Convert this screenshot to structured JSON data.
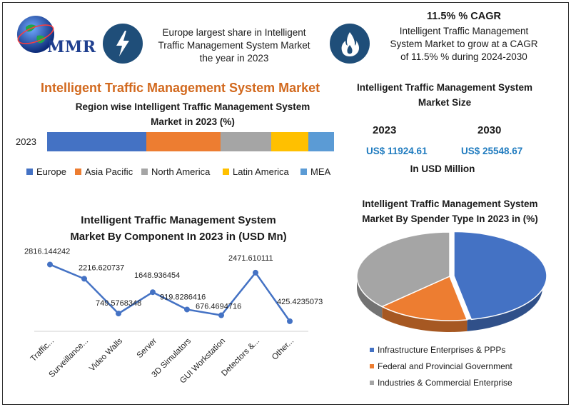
{
  "header": {
    "logo_text": "MMR",
    "left_text_lines": [
      "Europe largest share in Intelligent",
      "Traffic Management System Market",
      "the year in 2023"
    ],
    "right_title": "11.5% % CAGR",
    "right_text_lines": [
      "Intelligent Traffic Management",
      "System Market to grow at a CAGR",
      "of 11.5% % during 2024-2030"
    ]
  },
  "main_title": "Intelligent Traffic Management  System Market",
  "market_size": {
    "title_lines": [
      "Intelligent Traffic Management System",
      "Market Size"
    ],
    "year1": "2023",
    "value1": "US$ 11924.61",
    "year2": "2030",
    "value2": "US$ 25548.67",
    "unit": "In USD Million"
  },
  "chart_data": [
    {
      "type": "bar",
      "orientation": "horizontal",
      "stacked": true,
      "title": "Region wise Intelligent  Traffic Management System Market in 2023 (%)",
      "title_lines": [
        "Region wise Intelligent  Traffic Management System",
        "Market in 2023 (%)"
      ],
      "categories": [
        "2023"
      ],
      "series": [
        {
          "name": "Europe",
          "values": [
            35
          ],
          "color": "#4472c4"
        },
        {
          "name": "Asia Pacific",
          "values": [
            26
          ],
          "color": "#ed7d31"
        },
        {
          "name": "North America",
          "values": [
            18
          ],
          "color": "#a5a5a5"
        },
        {
          "name": "Latin America",
          "values": [
            13
          ],
          "color": "#ffc000"
        },
        {
          "name": "MEA",
          "values": [
            9
          ],
          "color": "#5b9bd5"
        }
      ],
      "legend": "bottom"
    },
    {
      "type": "line",
      "title": "Intelligent Traffic Management System Market By Component In 2023 in (USD Mn)",
      "title_lines": [
        "Intelligent Traffic Management System",
        "Market By Component In 2023 in (USD Mn)"
      ],
      "categories": [
        "Traffic...",
        "Surveillance...",
        "Video Walls",
        "Server",
        "3D Simulators",
        "GUI Workstation",
        "Detectors &...",
        "Other..."
      ],
      "values": [
        2816.144242,
        2216.620737,
        749.5768348,
        1648.936454,
        919.8286416,
        676.4694716,
        2471.610111,
        425.4235073
      ],
      "data_labels": [
        "2816.144242",
        "2216.620737",
        "749.5768348",
        "1648.936454",
        "919.8286416",
        "676.4694716",
        "2471.610111",
        "425.4235073"
      ],
      "color": "#4472c4",
      "ylim": [
        0,
        3000
      ]
    },
    {
      "type": "pie",
      "title": "Intelligent Traffic Management System Market By Spender Type In 2023 in (%)",
      "title_lines": [
        "Intelligent Traffic Management System",
        "Market By Spender Type In 2023 in (%)"
      ],
      "labels": [
        "Infrastructure Enterprises & PPPs",
        "Federal and Provincial Government",
        "Industries & Commercial Enterprise"
      ],
      "values": [
        47,
        16,
        37
      ],
      "colors": [
        "#4472c4",
        "#ed7d31",
        "#a5a5a5"
      ],
      "legend": "bottom-left"
    }
  ]
}
